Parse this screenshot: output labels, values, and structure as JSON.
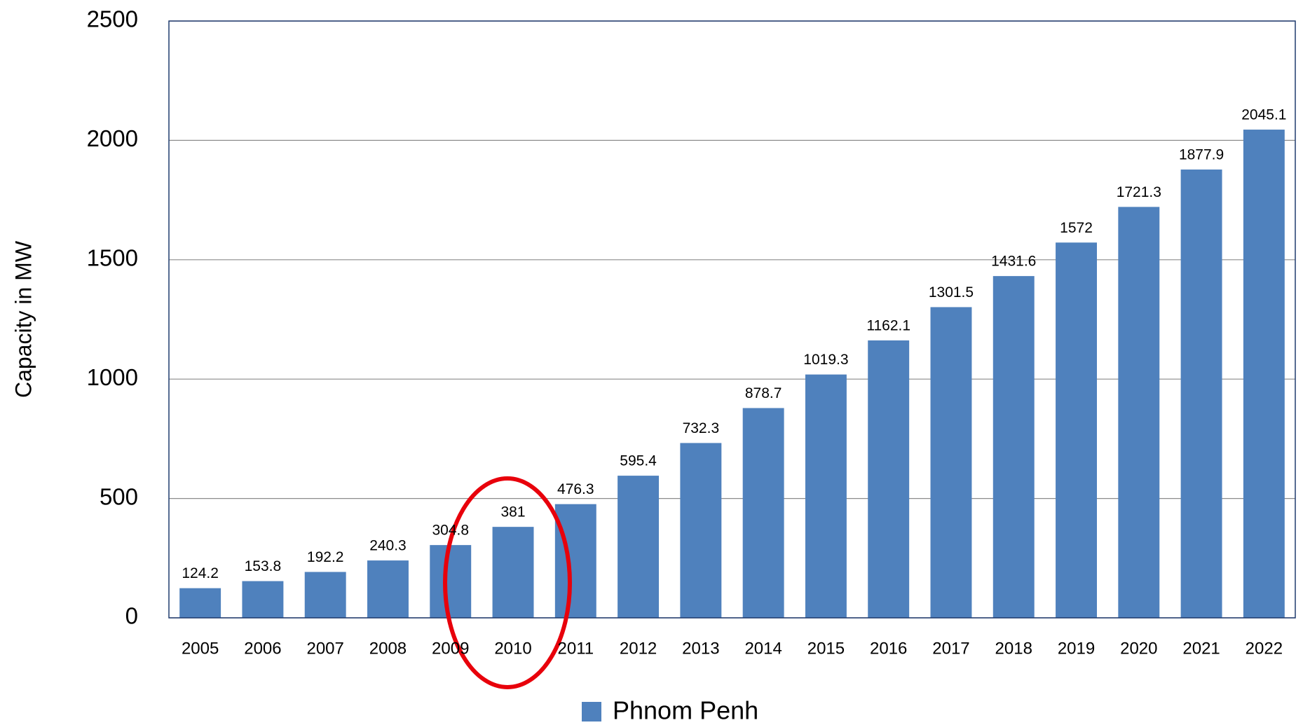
{
  "chart_data": {
    "type": "bar",
    "y_label": "Capacity in MW",
    "categories": [
      "2005",
      "2006",
      "2007",
      "2008",
      "2009",
      "2010",
      "2011",
      "2012",
      "2013",
      "2014",
      "2015",
      "2016",
      "2017",
      "2018",
      "2019",
      "2020",
      "2021",
      "2022"
    ],
    "series": [
      {
        "name": "Phnom Penh",
        "color": "#4f81bd",
        "values": [
          124.2,
          153.8,
          192.2,
          240.3,
          304.8,
          381,
          476.3,
          595.4,
          732.3,
          878.7,
          1019.3,
          1162.1,
          1301.5,
          1431.6,
          1572,
          1721.3,
          1877.9,
          2045.1
        ]
      }
    ],
    "ylim": [
      0,
      2500
    ],
    "yticks": [
      0,
      500,
      1000,
      1500,
      2000,
      2500
    ],
    "grid": true,
    "legend": "bottom"
  }
}
